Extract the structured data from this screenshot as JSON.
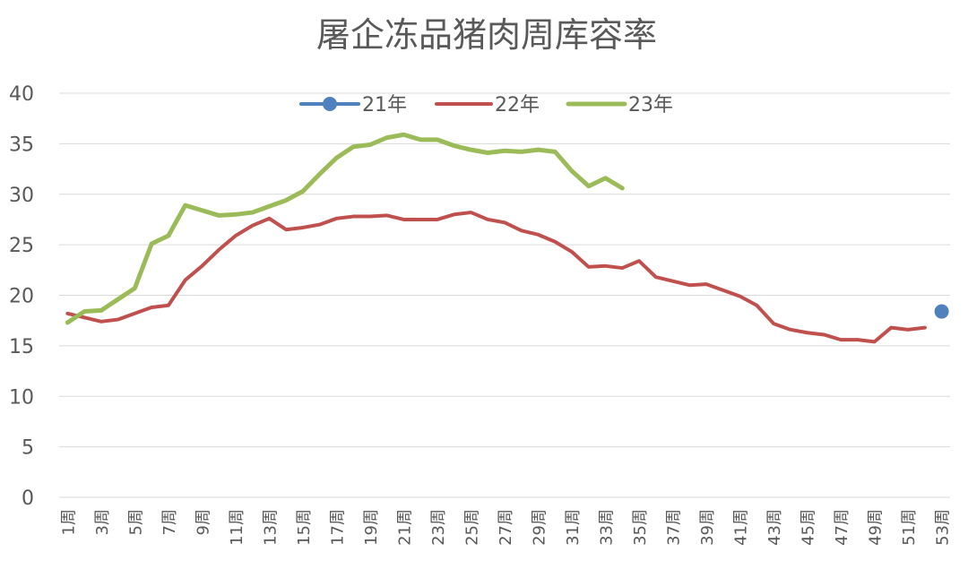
{
  "chart_data": {
    "type": "line",
    "title": "屠企冻品猪肉周库容率",
    "xlabel": "",
    "ylabel": "",
    "ylim": [
      0,
      40
    ],
    "yticks": [
      0,
      5,
      10,
      15,
      20,
      25,
      30,
      35,
      40
    ],
    "x": [
      "1周",
      "2周",
      "3周",
      "4周",
      "5周",
      "6周",
      "7周",
      "8周",
      "9周",
      "10周",
      "11周",
      "12周",
      "13周",
      "14周",
      "15周",
      "16周",
      "17周",
      "18周",
      "19周",
      "20周",
      "21周",
      "22周",
      "23周",
      "24周",
      "25周",
      "26周",
      "27周",
      "28周",
      "29周",
      "30周",
      "31周",
      "32周",
      "33周",
      "34周",
      "35周",
      "36周",
      "37周",
      "38周",
      "39周",
      "40周",
      "41周",
      "42周",
      "43周",
      "44周",
      "45周",
      "46周",
      "47周",
      "48周",
      "49周",
      "50周",
      "51周",
      "52周",
      "53周"
    ],
    "xtick_labels": [
      "1周",
      "3周",
      "5周",
      "7周",
      "9周",
      "11周",
      "13周",
      "15周",
      "17周",
      "19周",
      "21周",
      "23周",
      "25周",
      "27周",
      "29周",
      "31周",
      "33周",
      "35周",
      "37周",
      "39周",
      "41周",
      "43周",
      "45周",
      "47周",
      "49周",
      "51周",
      "53周"
    ],
    "grid": true,
    "legend_position": "top",
    "series": [
      {
        "name": "21年",
        "color": "#4f81bd",
        "marker": "circle",
        "values": [
          null,
          null,
          null,
          null,
          null,
          null,
          null,
          null,
          null,
          null,
          null,
          null,
          null,
          null,
          null,
          null,
          null,
          null,
          null,
          null,
          null,
          null,
          null,
          null,
          null,
          null,
          null,
          null,
          null,
          null,
          null,
          null,
          null,
          null,
          null,
          null,
          null,
          null,
          null,
          null,
          null,
          null,
          null,
          null,
          null,
          null,
          null,
          null,
          null,
          null,
          null,
          null,
          18.4
        ]
      },
      {
        "name": "22年",
        "color": "#c0504d",
        "values": [
          18.2,
          17.8,
          17.4,
          17.6,
          18.2,
          18.8,
          19.0,
          21.5,
          22.9,
          24.5,
          25.9,
          26.9,
          27.6,
          26.5,
          26.7,
          27.0,
          27.6,
          27.8,
          27.8,
          27.9,
          27.5,
          27.5,
          27.5,
          28.0,
          28.2,
          27.5,
          27.2,
          26.4,
          26.0,
          25.3,
          24.3,
          22.8,
          22.9,
          22.7,
          23.4,
          21.8,
          21.4,
          21.0,
          21.1,
          20.5,
          19.9,
          19.0,
          17.2,
          16.6,
          16.3,
          16.1,
          15.6,
          15.6,
          15.4,
          16.8,
          16.6,
          16.8,
          null
        ]
      },
      {
        "name": "23年",
        "color": "#9bbb59",
        "values": [
          17.3,
          18.4,
          18.5,
          19.6,
          20.7,
          25.1,
          25.9,
          28.9,
          28.4,
          27.9,
          28.0,
          28.2,
          28.8,
          29.4,
          30.3,
          32.0,
          33.6,
          34.7,
          34.9,
          35.6,
          35.9,
          35.4,
          35.4,
          34.8,
          34.4,
          34.1,
          34.3,
          34.2,
          34.4,
          34.2,
          32.3,
          30.8,
          31.6,
          30.6,
          null,
          null,
          null,
          null,
          null,
          null,
          null,
          null,
          null,
          null,
          null,
          null,
          null,
          null,
          null,
          null,
          null,
          null,
          null
        ]
      }
    ]
  }
}
